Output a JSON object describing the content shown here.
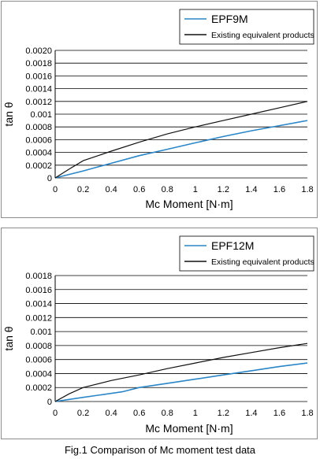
{
  "colors": {
    "series1": "#2b86c8",
    "series2": "#111111",
    "grid": "#000000",
    "frame": "#8c8c8c"
  },
  "chart_data": [
    {
      "type": "line",
      "xlabel": "Mc Moment [N·m]",
      "ylabel": "tan θ",
      "xlim": [
        0,
        1.8
      ],
      "ylim": [
        0,
        0.002
      ],
      "x_ticks": [
        "0",
        "0.2",
        "0.4",
        "0.6",
        "0.8",
        "1",
        "1.2",
        "1.4",
        "1.6",
        "1.8"
      ],
      "y_ticks": [
        "0",
        "0.0002",
        "0.0004",
        "0.0006",
        "0.0008",
        "0.001",
        "0.0012",
        "0.0014",
        "0.0016",
        "0.0018",
        "0.0020"
      ],
      "grid": "horizontal",
      "legend_position": "top-right",
      "series": [
        {
          "name": "EPF9M",
          "x": [
            0,
            0.2,
            0.4,
            0.6,
            0.8,
            1.0,
            1.2,
            1.4,
            1.6,
            1.8
          ],
          "values": [
            0,
            0.00011,
            0.00023,
            0.00035,
            0.00045,
            0.00055,
            0.00065,
            0.00074,
            0.00082,
            0.0009
          ]
        },
        {
          "name": "Existing equivalent products",
          "x": [
            0,
            0.1,
            0.2,
            0.4,
            0.6,
            0.8,
            1.0,
            1.2,
            1.4,
            1.6,
            1.8
          ],
          "values": [
            0,
            0.00014,
            0.00027,
            0.00042,
            0.00056,
            0.00069,
            0.0008,
            0.0009,
            0.001,
            0.0011,
            0.0012
          ]
        }
      ]
    },
    {
      "type": "line",
      "xlabel": "Mc Moment [N·m]",
      "ylabel": "tan θ",
      "xlim": [
        0,
        1.8
      ],
      "ylim": [
        0,
        0.0018
      ],
      "x_ticks": [
        "0",
        "0.2",
        "0.4",
        "0.6",
        "0.8",
        "1",
        "1.2",
        "1.4",
        "1.6",
        "1.8"
      ],
      "y_ticks": [
        "0",
        "0.0002",
        "0.0004",
        "0.0006",
        "0.0008",
        "0.001",
        "0.0012",
        "0.0014",
        "0.0016",
        "0.0018"
      ],
      "grid": "horizontal",
      "legend_position": "top-right",
      "series": [
        {
          "name": "EPF12M",
          "x": [
            0,
            0.2,
            0.48,
            0.6,
            0.8,
            1.0,
            1.2,
            1.4,
            1.6,
            1.8
          ],
          "values": [
            0,
            6e-05,
            0.00014,
            0.0002,
            0.00026,
            0.00032,
            0.00038,
            0.00044,
            0.0005,
            0.00055
          ]
        },
        {
          "name": "Existing equivalent products",
          "x": [
            0,
            0.1,
            0.2,
            0.4,
            0.6,
            0.8,
            1.0,
            1.2,
            1.4,
            1.6,
            1.8
          ],
          "values": [
            0,
            0.00011,
            0.0002,
            0.0003,
            0.00038,
            0.00047,
            0.00055,
            0.00063,
            0.0007,
            0.00077,
            0.00083
          ]
        }
      ]
    }
  ],
  "caption": "Fig.1 Comparison of Mc moment test data"
}
